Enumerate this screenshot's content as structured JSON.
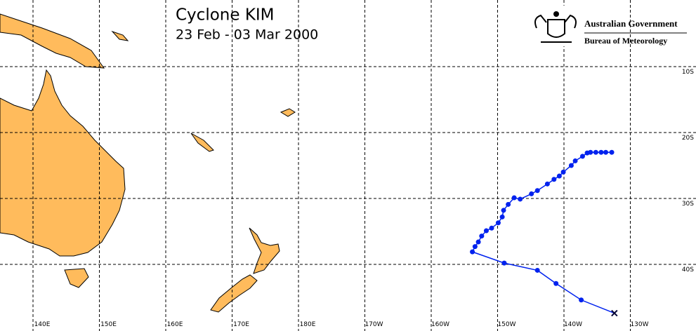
{
  "header": {
    "title": "Cyclone KIM",
    "subtitle": "23 Feb - 03 Mar 2000",
    "agency": "Australian Government",
    "bureau": "Bureau of Meteorology"
  },
  "map": {
    "lon_lines": [
      {
        "value": 140,
        "label": "140E"
      },
      {
        "value": 150,
        "label": "150E"
      },
      {
        "value": 160,
        "label": "160E"
      },
      {
        "value": 170,
        "label": "170E"
      },
      {
        "value": 180,
        "label": "180E"
      },
      {
        "value": -170,
        "label": "170W"
      },
      {
        "value": -160,
        "label": "160W"
      },
      {
        "value": -150,
        "label": "150W"
      },
      {
        "value": -140,
        "label": "140W"
      },
      {
        "value": -130,
        "label": "130W"
      }
    ],
    "lat_lines": [
      {
        "value": -10,
        "label": "10S"
      },
      {
        "value": -20,
        "label": "20S"
      },
      {
        "value": -30,
        "label": "30S"
      },
      {
        "value": -40,
        "label": "40S"
      }
    ],
    "track": {
      "color": "#0022ee",
      "lon": [
        -132.8,
        -133.7,
        -134.4,
        -135.2,
        -136.0,
        -136.5,
        -137.2,
        -138.3,
        -138.9,
        -140.1,
        -140.7,
        -141.5,
        -142.5,
        -144.0,
        -144.9,
        -146.6,
        -147.5,
        -148.4,
        -149.1,
        -149.3,
        -149.9,
        -150.9,
        -151.7,
        -152.4,
        -152.9,
        -153.4,
        -153.8,
        -149.0,
        -144.0,
        -141.2,
        -137.4,
        -132.4
      ],
      "lat": [
        -23.0,
        -23.0,
        -23.0,
        -23.0,
        -23.0,
        -23.1,
        -23.6,
        -24.3,
        -25.0,
        -26.0,
        -26.6,
        -27.1,
        -27.8,
        -28.8,
        -29.3,
        -30.1,
        -29.9,
        -30.9,
        -31.8,
        -32.8,
        -33.7,
        -34.5,
        -34.9,
        -35.7,
        -36.6,
        -37.3,
        -38.1,
        -39.8,
        -40.9,
        -42.9,
        -45.4,
        -47.4
      ]
    }
  }
}
